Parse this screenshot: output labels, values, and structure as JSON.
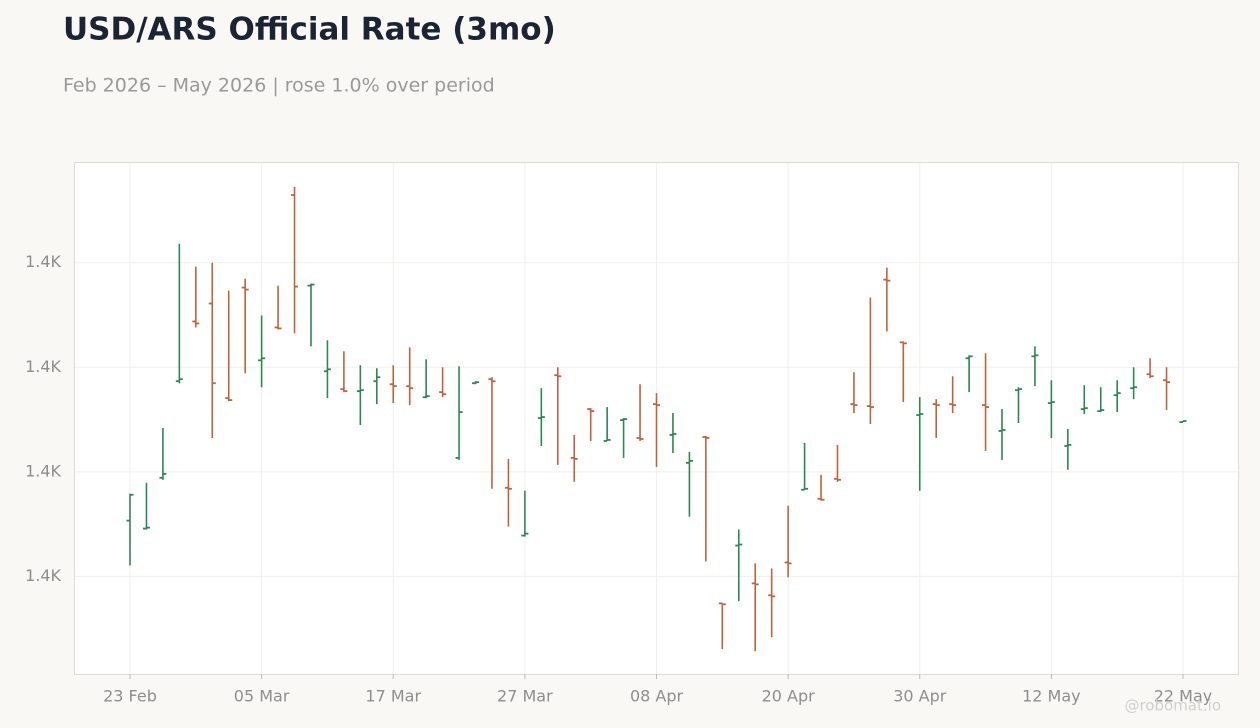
{
  "chart_data": {
    "type": "ohlc",
    "title": "USD/ARS Official Rate (3mo)",
    "subtitle": "Feb 2026 – May 2026 | rose 1.0% over period",
    "watermark": "@robomat.io",
    "categories": [
      "23 Feb",
      null,
      null,
      null,
      null,
      null,
      null,
      null,
      "05 Mar",
      null,
      null,
      null,
      null,
      null,
      null,
      null,
      "17 Mar",
      null,
      null,
      null,
      null,
      null,
      null,
      null,
      "27 Mar",
      null,
      null,
      null,
      null,
      null,
      null,
      null,
      "08 Apr",
      null,
      null,
      null,
      null,
      null,
      null,
      null,
      "20 Apr",
      null,
      null,
      null,
      null,
      null,
      null,
      null,
      "30 Apr",
      null,
      null,
      null,
      null,
      null,
      null,
      null,
      "12 May",
      null,
      null,
      null,
      null,
      null,
      null,
      null,
      "22 May"
    ],
    "series": [
      {
        "name": "open",
        "values": [
          1373,
          1371.86,
          1379.14,
          1393,
          1401.57,
          1404.14,
          1390.57,
          1406.43,
          1396,
          1400.71,
          1419.71,
          1406.71,
          1394.43,
          1391.86,
          1391.57,
          1393,
          1392.57,
          1392.29,
          1390.71,
          1391.43,
          1382,
          1392.71,
          1393.29,
          1377.71,
          1370.86,
          1387.71,
          1393.86,
          1382,
          1389,
          1384.43,
          1387.43,
          1384.86,
          1389.71,
          1385.29,
          1381.29,
          1385,
          1361.14,
          1369.43,
          1364,
          1362.29,
          1367,
          1377.43,
          1376.14,
          1379,
          1389.71,
          1389.43,
          1407.57,
          1398.57,
          1388.14,
          1389.71,
          1389.71,
          1396.29,
          1389.57,
          1385.86,
          1391.71,
          1396.57,
          1389.86,
          1383.71,
          1389,
          1388.71,
          1391,
          1392,
          1394,
          1393.14,
          1387.14
        ]
      },
      {
        "name": "high",
        "values": [
          1376.86,
          1378.43,
          1386.29,
          1412.71,
          1409.43,
          1410,
          1406,
          1407.71,
          1402.43,
          1406.71,
          1420.86,
          1407,
          1398.86,
          1397.29,
          1395.29,
          1394.86,
          1395.29,
          1397.86,
          1396.14,
          1395,
          1395.14,
          1393,
          1393.57,
          1381.86,
          1377.29,
          1392,
          1395,
          1385.29,
          1389.14,
          1389.29,
          1387.71,
          1392.57,
          1391.29,
          1388.43,
          1382.86,
          1385.14,
          1361.14,
          1371.71,
          1366.86,
          1366.14,
          1375.14,
          1384.14,
          1379.57,
          1383.86,
          1394.29,
          1405,
          1409.29,
          1398.71,
          1390.71,
          1390.43,
          1393.71,
          1396.71,
          1397,
          1389,
          1392.14,
          1398,
          1393.14,
          1386.14,
          1392.43,
          1392.14,
          1393.14,
          1395,
          1396.29,
          1395,
          1387.29
        ]
      },
      {
        "name": "low",
        "values": [
          1366.57,
          1371.71,
          1378.86,
          1392.71,
          1400.71,
          1384.86,
          1390.14,
          1394.14,
          1392.14,
          1400.43,
          1399.86,
          1398,
          1390.57,
          1391.43,
          1386.71,
          1389.71,
          1389.86,
          1389.57,
          1390.57,
          1390.71,
          1381.71,
          1392.57,
          1377.57,
          1372.14,
          1370.71,
          1383.71,
          1381,
          1378.57,
          1384.43,
          1384.43,
          1382,
          1384.43,
          1380.71,
          1382.71,
          1373.57,
          1367.14,
          1354.57,
          1361.43,
          1354.29,
          1356.29,
          1364.86,
          1377.43,
          1375.86,
          1378.57,
          1388.43,
          1386.86,
          1400.14,
          1390,
          1377.29,
          1384.86,
          1388.43,
          1391.43,
          1383,
          1381.71,
          1387,
          1392.29,
          1384.86,
          1380.29,
          1388.29,
          1388.57,
          1388.57,
          1390.43,
          1393.43,
          1388.86,
          1387.14
        ]
      },
      {
        "name": "close",
        "values": [
          1376.71,
          1372,
          1379.71,
          1393.29,
          1401.29,
          1392.71,
          1390.29,
          1406.14,
          1396.29,
          1400.57,
          1406.57,
          1406.86,
          1394.71,
          1391.57,
          1391.71,
          1393.57,
          1392.29,
          1392,
          1390.86,
          1391.14,
          1388.57,
          1392.86,
          1393,
          1377.57,
          1371.14,
          1387.86,
          1393.71,
          1381.86,
          1388.71,
          1384.57,
          1387.57,
          1384.71,
          1389.57,
          1385.43,
          1381.57,
          1384.86,
          1361,
          1369.57,
          1363.86,
          1362.14,
          1366.86,
          1377.57,
          1376,
          1378.86,
          1389.57,
          1389.29,
          1407.43,
          1398.43,
          1388.29,
          1389.57,
          1389.57,
          1396.57,
          1389.29,
          1386,
          1391.86,
          1396.71,
          1390,
          1383.86,
          1389.14,
          1388.86,
          1391.29,
          1392.14,
          1393.71,
          1392.86,
          1387.29
        ]
      }
    ],
    "up_color": "#2e8555",
    "down_color": "#c0623f",
    "ylim": [
      1351,
      1424.3
    ],
    "yticks": [
      {
        "value": 1365,
        "label": "1.4K"
      },
      {
        "value": 1380,
        "label": "1.4K"
      },
      {
        "value": 1395,
        "label": "1.4K"
      },
      {
        "value": 1410,
        "label": "1.4K"
      }
    ],
    "grid": true
  }
}
